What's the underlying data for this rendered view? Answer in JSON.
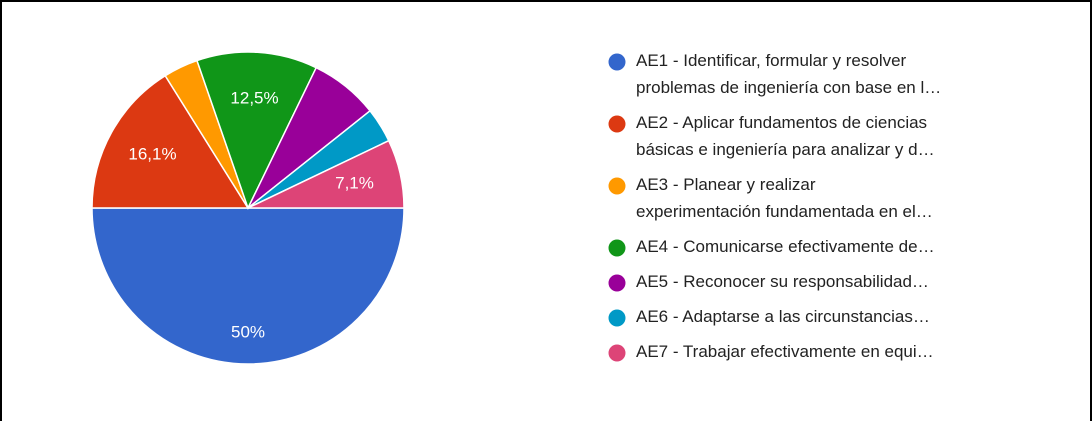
{
  "chart_data": {
    "type": "pie",
    "categories": [
      "AE1 - Identificar, formular y resolver\nproblemas de ingeniería con base en l…",
      "AE2 - Aplicar fundamentos de ciencias\nbásicas e ingeniería para analizar y d…",
      "AE3 - Planear y realizar\nexperimentación fundamentada en el…",
      "AE4 - Comunicarse efectivamente de…",
      "AE5 - Reconocer su responsabilidad…",
      "AE6 - Adaptarse a las circunstancias…",
      "AE7 - Trabajar efectivamente en equi…"
    ],
    "values": [
      50,
      16.1,
      3.6,
      12.5,
      7.1,
      3.6,
      7.1
    ],
    "value_labels": [
      "50%",
      "16,1%",
      null,
      "12,5%",
      null,
      null,
      "7,1%"
    ],
    "colors": [
      "#3366cc",
      "#dc3912",
      "#ff9900",
      "#109618",
      "#990099",
      "#0099c6",
      "#dd4477"
    ],
    "legend": "right"
  }
}
